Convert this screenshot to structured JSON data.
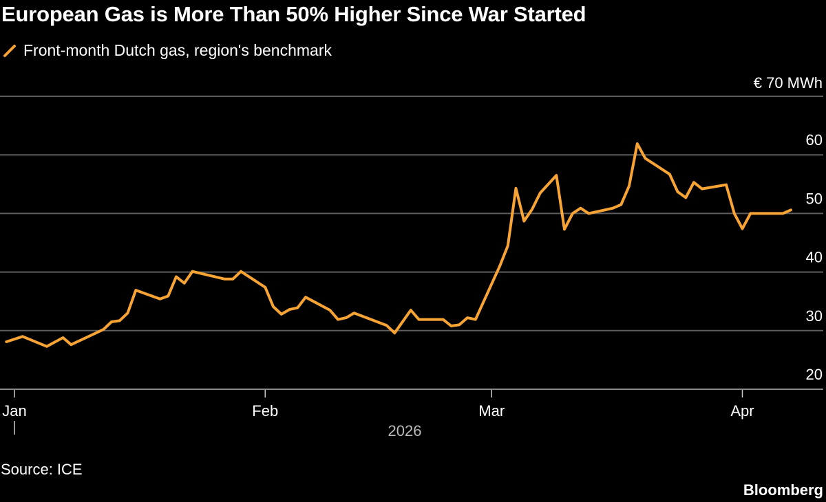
{
  "title": "European Gas is More Than 50% Higher Since War Started",
  "legend": {
    "label": "Front-month Dutch gas, region's benchmark",
    "color": "#f7a435"
  },
  "unit_label": "€ 70 MWh",
  "source": "Source: ICE",
  "brand": "Bloomberg",
  "chart_data": {
    "type": "line",
    "title": "European Gas is More Than 50% Higher Since War Started",
    "xlabel": "2026",
    "ylabel": "€ MWh",
    "ylim": [
      20,
      70
    ],
    "yticks": [
      20,
      30,
      40,
      50,
      60,
      70
    ],
    "ytick_labels": [
      "20",
      "30",
      "40",
      "50",
      "60",
      "€ 70 MWh"
    ],
    "xticks": [
      {
        "date": "2026-01-01",
        "label": "Jan"
      },
      {
        "date": "2026-02-01",
        "label": "Feb"
      },
      {
        "date": "2026-03-01",
        "label": "Mar"
      },
      {
        "date": "2026-04-01",
        "label": "Apr"
      }
    ],
    "year_label": "2026",
    "grid": true,
    "legend_position": "top-left",
    "series": [
      {
        "name": "Front-month Dutch gas, region's benchmark",
        "color": "#f7a435",
        "points": [
          [
            "2025-12-31",
            28.1
          ],
          [
            "2026-01-02",
            29.0
          ],
          [
            "2026-01-05",
            27.3
          ],
          [
            "2026-01-07",
            28.8
          ],
          [
            "2026-01-08",
            27.6
          ],
          [
            "2026-01-12",
            30.2
          ],
          [
            "2026-01-13",
            31.5
          ],
          [
            "2026-01-14",
            31.7
          ],
          [
            "2026-01-15",
            33.0
          ],
          [
            "2026-01-16",
            36.9
          ],
          [
            "2026-01-19",
            35.4
          ],
          [
            "2026-01-20",
            35.9
          ],
          [
            "2026-01-21",
            39.2
          ],
          [
            "2026-01-22",
            38.1
          ],
          [
            "2026-01-23",
            40.1
          ],
          [
            "2026-01-27",
            38.8
          ],
          [
            "2026-01-28",
            38.8
          ],
          [
            "2026-01-29",
            40.1
          ],
          [
            "2026-01-30",
            39.2
          ],
          [
            "2026-02-01",
            37.4
          ],
          [
            "2026-02-02",
            34.1
          ],
          [
            "2026-02-03",
            32.8
          ],
          [
            "2026-02-04",
            33.6
          ],
          [
            "2026-02-05",
            33.9
          ],
          [
            "2026-02-06",
            35.7
          ],
          [
            "2026-02-09",
            33.5
          ],
          [
            "2026-02-10",
            31.9
          ],
          [
            "2026-02-11",
            32.2
          ],
          [
            "2026-02-12",
            33.0
          ],
          [
            "2026-02-16",
            30.9
          ],
          [
            "2026-02-17",
            29.6
          ],
          [
            "2026-02-19",
            33.5
          ],
          [
            "2026-02-20",
            31.9
          ],
          [
            "2026-02-23",
            31.9
          ],
          [
            "2026-02-24",
            30.8
          ],
          [
            "2026-02-25",
            31.0
          ],
          [
            "2026-02-26",
            32.2
          ],
          [
            "2026-02-27",
            31.9
          ],
          [
            "2026-03-02",
            41.0
          ],
          [
            "2026-03-03",
            44.5
          ],
          [
            "2026-03-04",
            54.3
          ],
          [
            "2026-03-05",
            48.7
          ],
          [
            "2026-03-06",
            50.7
          ],
          [
            "2026-03-07",
            53.5
          ],
          [
            "2026-03-09",
            56.5
          ],
          [
            "2026-03-10",
            47.3
          ],
          [
            "2026-03-11",
            50.0
          ],
          [
            "2026-03-12",
            50.9
          ],
          [
            "2026-03-13",
            50.0
          ],
          [
            "2026-03-16",
            50.9
          ],
          [
            "2026-03-17",
            51.5
          ],
          [
            "2026-03-18",
            54.7
          ],
          [
            "2026-03-19",
            61.9
          ],
          [
            "2026-03-20",
            59.4
          ],
          [
            "2026-03-23",
            56.7
          ],
          [
            "2026-03-24",
            53.7
          ],
          [
            "2026-03-25",
            52.7
          ],
          [
            "2026-03-26",
            55.3
          ],
          [
            "2026-03-27",
            54.2
          ],
          [
            "2026-03-30",
            54.9
          ],
          [
            "2026-03-31",
            50.0
          ],
          [
            "2026-04-01",
            47.4
          ],
          [
            "2026-04-02",
            50.0
          ],
          [
            "2026-04-06",
            50.0
          ],
          [
            "2026-04-07",
            50.6
          ]
        ]
      }
    ]
  }
}
